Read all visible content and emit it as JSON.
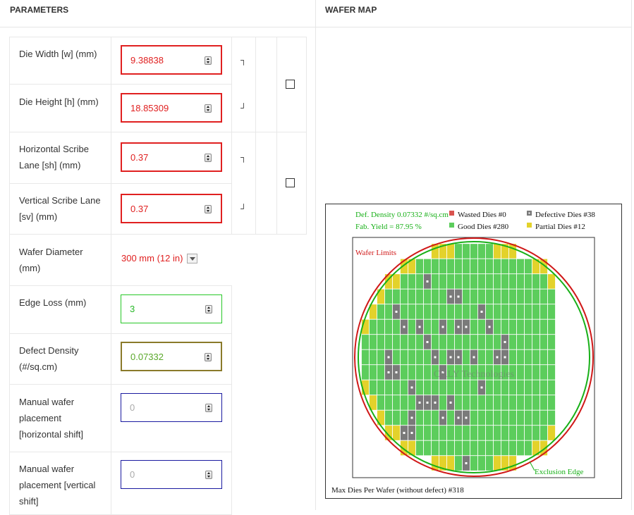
{
  "headers": {
    "parameters": "PARAMETERS",
    "wafer_map": "WAFER MAP"
  },
  "fields": {
    "die_width": {
      "label": "Die Width [w] (mm)",
      "value": "9.38838"
    },
    "die_height": {
      "label": "Die Height [h] (mm)",
      "value": "18.85309"
    },
    "h_scribe": {
      "label": "Horizontal Scribe Lane [sh] (mm)",
      "value": "0.37"
    },
    "v_scribe": {
      "label": "Vertical Scribe Lane [sv] (mm)",
      "value": "0.37"
    },
    "wafer_diameter": {
      "label": "Wafer Diameter (mm)",
      "selected": "300 mm (12 in)"
    },
    "edge_loss": {
      "label": "Edge Loss (mm)",
      "value": "3"
    },
    "defect_density": {
      "label": "Defect Density (#/sq.cm)",
      "value": "0.07332"
    },
    "h_shift": {
      "label": "Manual wafer placement [horizontal shift]",
      "placeholder": "0"
    },
    "v_shift": {
      "label": "Manual wafer placement [vertical shift]",
      "placeholder": "0"
    }
  },
  "brackets": {
    "top": "┐",
    "bottom": "┘"
  },
  "wafer_map": {
    "def_density": "Def. Density 0.07332 #/sq.cm",
    "fab_yield": "Fab. Yield = 87.95 %",
    "legend": {
      "wasted": "Wasted Dies  #0",
      "defective": "Defective Dies  #38",
      "good": "Good Dies #280",
      "partial": "Partial Dies #12"
    },
    "wafer_limits": "Wafer Limits",
    "exclusion_edge": "Exclusion Edge",
    "watermark": "CALY Technologies",
    "max_dies": "Max Dies Per Wafer (without defect) #318",
    "colors": {
      "good": "#5ccd5c",
      "defective": "#7a7a7a",
      "partial": "#e3d22b",
      "wasted": "#d9534f",
      "wafer_limit": "#d01818",
      "exclusion": "#18b018"
    }
  }
}
